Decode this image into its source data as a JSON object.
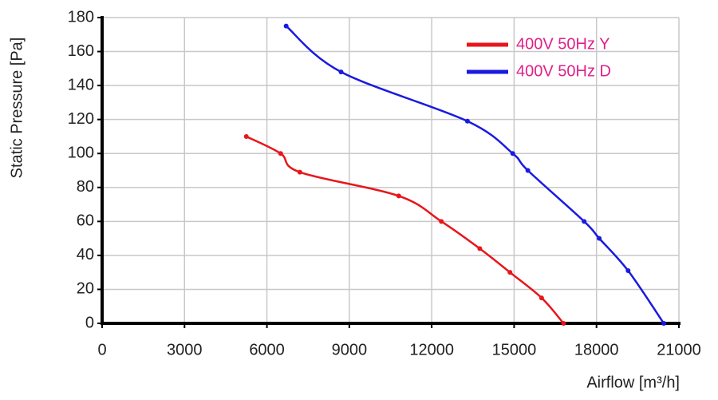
{
  "chart_data": {
    "type": "line",
    "x_label": "Airflow [m³/h]",
    "y_label": "Static Pressure [Pa]",
    "xlim": [
      0,
      21000
    ],
    "xticks": [
      0,
      3000,
      6000,
      9000,
      12000,
      15000,
      18000,
      21000
    ],
    "ylim": [
      0,
      180
    ],
    "yticks": [
      0,
      20,
      40,
      60,
      80,
      100,
      120,
      140,
      160,
      180
    ],
    "grid": true,
    "legend": "upper right",
    "legend_text_color": "#e0208a",
    "series": [
      {
        "name": "400V 50Hz Y",
        "color": "#e8161b",
        "x": [
          5250,
          6500,
          7200,
          10800,
          12350,
          13750,
          14850,
          16000,
          16800
        ],
        "values": [
          110,
          100,
          89,
          75,
          60,
          44,
          30,
          15,
          0
        ]
      },
      {
        "name": "400V 50Hz D",
        "color": "#1a1ae0",
        "x": [
          6700,
          8700,
          13300,
          14950,
          15500,
          17550,
          18100,
          19150,
          20450
        ],
        "values": [
          175,
          148,
          119,
          100,
          90,
          60,
          50,
          31,
          0
        ]
      }
    ]
  }
}
